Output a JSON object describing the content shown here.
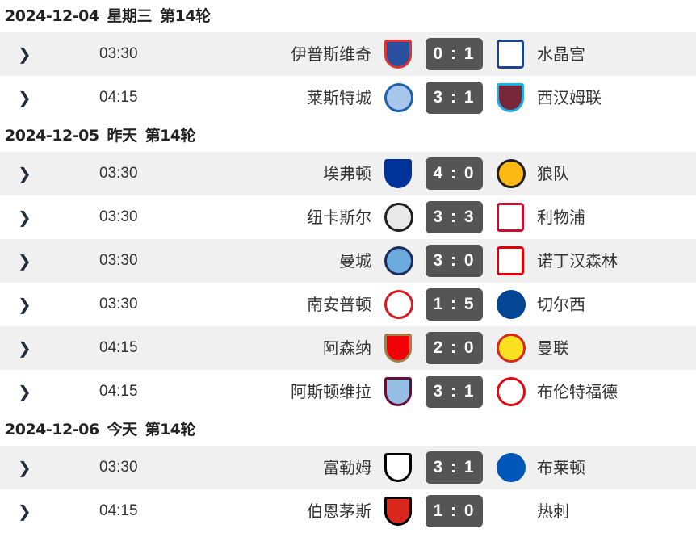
{
  "groups": [
    {
      "date": "2024-12-04",
      "day": "星期三",
      "round": "第14轮",
      "matches": [
        {
          "time": "03:30",
          "home": "伊普斯维奇",
          "score": "0 : 1",
          "away": "水晶宫",
          "home_logo": {
            "shape": "shield",
            "bg": "#2b4fa0",
            "border": "#d33"
          },
          "away_logo": {
            "shape": "plain",
            "bg": "#ffffff",
            "border": "#1b458f"
          }
        },
        {
          "time": "04:15",
          "home": "莱斯特城",
          "score": "3 : 1",
          "away": "西汉姆联",
          "home_logo": {
            "shape": "circle",
            "bg": "#a8c6ea",
            "border": "#1d5fb0"
          },
          "away_logo": {
            "shape": "shield",
            "bg": "#7a263a",
            "border": "#1bb1e7"
          }
        }
      ]
    },
    {
      "date": "2024-12-05",
      "day": "昨天",
      "round": "第14轮",
      "matches": [
        {
          "time": "03:30",
          "home": "埃弗顿",
          "score": "4 : 0",
          "away": "狼队",
          "home_logo": {
            "shape": "shield",
            "bg": "#003399",
            "border": "#003399"
          },
          "away_logo": {
            "shape": "circle",
            "bg": "#fdb913",
            "border": "#231f20"
          }
        },
        {
          "time": "03:30",
          "home": "纽卡斯尔",
          "score": "3 : 3",
          "away": "利物浦",
          "home_logo": {
            "shape": "circle",
            "bg": "#e8e8e8",
            "border": "#222"
          },
          "away_logo": {
            "shape": "plain",
            "bg": "#ffffff",
            "border": "#c8102e"
          }
        },
        {
          "time": "03:30",
          "home": "曼城",
          "score": "3 : 0",
          "away": "诺丁汉森林",
          "home_logo": {
            "shape": "circle",
            "bg": "#6cabdd",
            "border": "#1c2c5b"
          },
          "away_logo": {
            "shape": "plain",
            "bg": "#ffffff",
            "border": "#dd0000"
          }
        },
        {
          "time": "03:30",
          "home": "南安普顿",
          "score": "1 : 5",
          "away": "切尔西",
          "home_logo": {
            "shape": "circle",
            "bg": "#ffffff",
            "border": "#d71920"
          },
          "away_logo": {
            "shape": "circle",
            "bg": "#034694",
            "border": "#034694"
          }
        },
        {
          "time": "04:15",
          "home": "阿森纳",
          "score": "2 : 0",
          "away": "曼联",
          "home_logo": {
            "shape": "shield",
            "bg": "#ef0107",
            "border": "#9c824a"
          },
          "away_logo": {
            "shape": "circle",
            "bg": "#fbe122",
            "border": "#da291c"
          }
        },
        {
          "time": "04:15",
          "home": "阿斯顿维拉",
          "score": "3 : 1",
          "away": "布伦特福德",
          "home_logo": {
            "shape": "shield",
            "bg": "#95bfe5",
            "border": "#670e36"
          },
          "away_logo": {
            "shape": "circle",
            "bg": "#ffffff",
            "border": "#e30613"
          }
        }
      ]
    },
    {
      "date": "2024-12-06",
      "day": "今天",
      "round": "第14轮",
      "matches": [
        {
          "time": "03:30",
          "home": "富勒姆",
          "score": "3 : 1",
          "away": "布莱顿",
          "home_logo": {
            "shape": "shield",
            "bg": "#ffffff",
            "border": "#000000"
          },
          "away_logo": {
            "shape": "circle",
            "bg": "#0057b8",
            "border": "#0057b8"
          }
        },
        {
          "time": "04:15",
          "home": "伯恩茅斯",
          "score": "1 : 0",
          "away": "热刺",
          "home_logo": {
            "shape": "shield",
            "bg": "#da291c",
            "border": "#000000"
          },
          "away_logo": {
            "shape": "plain",
            "bg": "#ffffff",
            "border": "#ffffff"
          }
        }
      ]
    }
  ],
  "icons": {
    "expand": "chevron-right-icon"
  }
}
